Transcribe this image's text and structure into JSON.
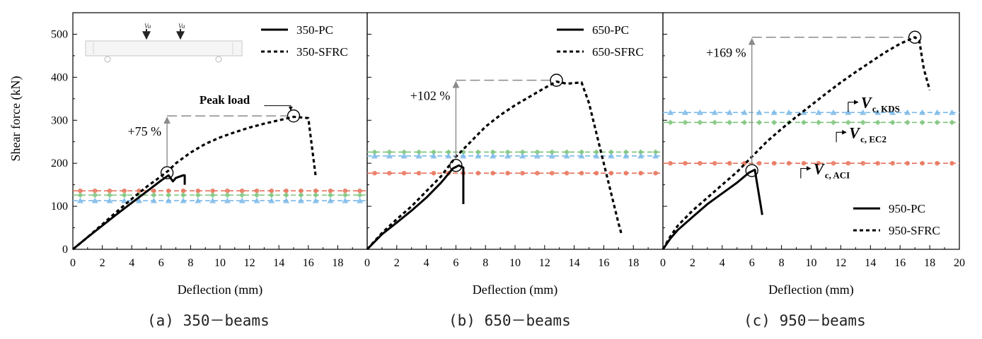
{
  "figure": {
    "y_axis_label": "Shear force (kN)",
    "x_axis_label": "Deflection (mm)",
    "y_ticks": [
      "0",
      "100",
      "200",
      "300",
      "400",
      "500"
    ],
    "x_ticks_short": [
      "0",
      "2",
      "4",
      "6",
      "8",
      "10",
      "12",
      "14",
      "16",
      "18"
    ],
    "x_ticks_long": [
      "0",
      "2",
      "4",
      "6",
      "8",
      "10",
      "12",
      "14",
      "16",
      "18",
      "20"
    ],
    "inset_load_label": "Vu",
    "colors": {
      "aci": "#e8735a",
      "ec2": "#7cc47a",
      "kds": "#7ab8e8",
      "curves": "#000000",
      "annotation": "#8a8a8a"
    }
  },
  "chart_data": [
    {
      "type": "line",
      "caption": "(a) 350－beams",
      "xlabel": "Deflection (mm)",
      "ylabel": "Shear force (kN)",
      "xlim": [
        0,
        20
      ],
      "ylim": [
        0,
        550
      ],
      "legend": [
        "350-PC",
        "350-SFRC"
      ],
      "legend_position": "top-right",
      "series": [
        {
          "name": "350-PC",
          "style": "solid",
          "x": [
            0,
            1,
            2,
            3,
            4,
            5,
            6,
            6.5,
            6.8,
            7.0,
            7.5,
            7.6,
            7.6
          ],
          "y": [
            0,
            28,
            55,
            82,
            108,
            134,
            160,
            172,
            158,
            166,
            172,
            172,
            150
          ]
        },
        {
          "name": "350-SFRC",
          "style": "dashed",
          "x": [
            0,
            1,
            2,
            3,
            4,
            5,
            6,
            6.5,
            7,
            8,
            9,
            10,
            11,
            12,
            13,
            14,
            15,
            16,
            16.2,
            16.5
          ],
          "y": [
            0,
            28,
            58,
            88,
            117,
            145,
            170,
            183,
            200,
            225,
            245,
            260,
            272,
            283,
            292,
            300,
            308,
            305,
            250,
            170
          ]
        },
        {
          "name": "Vc,ACI",
          "style": "dash-circle",
          "x": [
            0,
            20
          ],
          "y": [
            136,
            136
          ]
        },
        {
          "name": "Vc,EC2",
          "style": "dash-diamond",
          "x": [
            0,
            20
          ],
          "y": [
            126,
            126
          ]
        },
        {
          "name": "Vc,KDS",
          "style": "dash-triangle",
          "x": [
            0,
            20
          ],
          "y": [
            113,
            113
          ]
        }
      ],
      "annotations": {
        "increase": "+75 %",
        "peak_label": "Peak load",
        "pc_peak": [
          6.4,
          178
        ],
        "sfrc_peak": [
          15.0,
          310
        ]
      }
    },
    {
      "type": "line",
      "caption": "(b) 650－beams",
      "xlabel": "Deflection (mm)",
      "ylabel": "",
      "xlim": [
        0,
        20
      ],
      "ylim": [
        0,
        550
      ],
      "legend": [
        "650-PC",
        "650-SFRC"
      ],
      "legend_position": "top-right",
      "series": [
        {
          "name": "650-PC",
          "style": "solid",
          "x": [
            0,
            1,
            2,
            3,
            4,
            5,
            5.8,
            6.2,
            6.5,
            6.5
          ],
          "y": [
            0,
            35,
            62,
            90,
            120,
            155,
            188,
            195,
            190,
            105
          ]
        },
        {
          "name": "650-SFRC",
          "style": "dashed",
          "x": [
            0,
            1,
            2,
            3,
            4,
            5,
            6,
            7,
            8,
            9,
            10,
            11,
            12,
            12.8,
            13.5,
            14.5,
            15,
            16,
            17,
            17.2
          ],
          "y": [
            0,
            38,
            70,
            100,
            135,
            170,
            215,
            250,
            285,
            312,
            335,
            355,
            375,
            390,
            385,
            388,
            340,
            200,
            60,
            35
          ]
        },
        {
          "name": "Vc,EC2",
          "style": "dash-diamond",
          "x": [
            0,
            20
          ],
          "y": [
            226,
            226
          ]
        },
        {
          "name": "Vc,KDS",
          "style": "dash-triangle",
          "x": [
            0,
            20
          ],
          "y": [
            217,
            217
          ]
        },
        {
          "name": "Vc,ACI",
          "style": "dash-circle",
          "x": [
            0,
            20
          ],
          "y": [
            177,
            177
          ]
        }
      ],
      "annotations": {
        "increase": "+102 %",
        "pc_peak": [
          6.0,
          195
        ],
        "sfrc_peak": [
          12.8,
          393
        ]
      }
    },
    {
      "type": "line",
      "caption": "(c) 950－beams",
      "xlabel": "Deflection (mm)",
      "ylabel": "",
      "xlim": [
        0,
        20
      ],
      "ylim": [
        0,
        550
      ],
      "legend": [
        "950-PC",
        "950-SFRC"
      ],
      "legend_position": "bottom-right",
      "series": [
        {
          "name": "950-PC",
          "style": "solid",
          "x": [
            0,
            0.5,
            1,
            2,
            3,
            4,
            5,
            5.8,
            6.2,
            6.7
          ],
          "y": [
            0,
            25,
            45,
            75,
            105,
            130,
            155,
            178,
            185,
            80
          ]
        },
        {
          "name": "950-SFRC",
          "style": "dashed",
          "x": [
            0,
            0.5,
            1,
            2,
            3,
            4,
            5,
            6,
            7,
            8,
            9,
            10,
            11,
            12,
            13,
            14,
            15,
            16,
            17,
            17.3,
            17.6,
            18
          ],
          "y": [
            0,
            30,
            55,
            90,
            120,
            150,
            180,
            215,
            250,
            280,
            308,
            335,
            362,
            388,
            412,
            435,
            458,
            478,
            493,
            485,
            420,
            370
          ]
        },
        {
          "name": "Vc,KDS",
          "style": "dash-triangle",
          "x": [
            0,
            20
          ],
          "y": [
            318,
            318
          ]
        },
        {
          "name": "Vc,EC2",
          "style": "dash-diamond",
          "x": [
            0,
            20
          ],
          "y": [
            295,
            295
          ]
        },
        {
          "name": "Vc,ACI",
          "style": "dash-circle",
          "x": [
            0,
            20
          ],
          "y": [
            200,
            200
          ]
        }
      ],
      "annotations": {
        "increase": "+169 %",
        "pc_peak": [
          6.0,
          183
        ],
        "sfrc_peak": [
          17.0,
          493
        ],
        "label_kds": "V",
        "label_kds_sub": "c, KDS",
        "label_ec2": "V",
        "label_ec2_sub": "c, EC2",
        "label_aci": "V",
        "label_aci_sub": "c, ACI"
      }
    }
  ]
}
